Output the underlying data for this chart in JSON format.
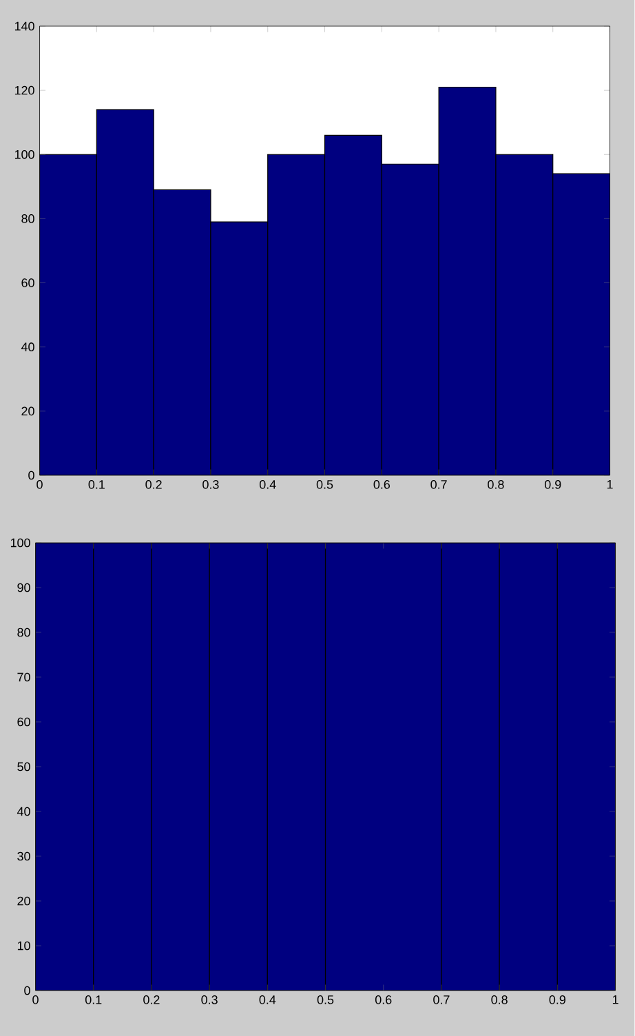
{
  "chart_data": [
    {
      "type": "histogram",
      "bins": [
        0,
        0.1,
        0.2,
        0.3,
        0.4,
        0.5,
        0.6,
        0.7,
        0.8,
        0.9,
        1
      ],
      "values": [
        100,
        114,
        89,
        79,
        100,
        106,
        97,
        121,
        100,
        94
      ],
      "color": "#000080",
      "xlim": [
        0,
        1
      ],
      "ylim": [
        0,
        140
      ],
      "xticks": [
        0,
        0.1,
        0.2,
        0.3,
        0.4,
        0.5,
        0.6,
        0.7,
        0.8,
        0.9,
        1
      ],
      "yticks": [
        0,
        20,
        40,
        60,
        80,
        100,
        120,
        140
      ]
    },
    {
      "type": "histogram",
      "bins": [
        0,
        0.1,
        0.2,
        0.3,
        0.4,
        0.5,
        0.7,
        0.8,
        0.9,
        1
      ],
      "values": [
        100,
        100,
        100,
        100,
        100,
        100,
        100,
        100,
        100
      ],
      "color": "#000080",
      "xlim": [
        0,
        1
      ],
      "ylim": [
        0,
        100
      ],
      "xticks": [
        0,
        0.1,
        0.2,
        0.3,
        0.4,
        0.5,
        0.6,
        0.7,
        0.8,
        0.9,
        1
      ],
      "yticks": [
        0,
        10,
        20,
        30,
        40,
        50,
        60,
        70,
        80,
        90,
        100
      ]
    }
  ]
}
